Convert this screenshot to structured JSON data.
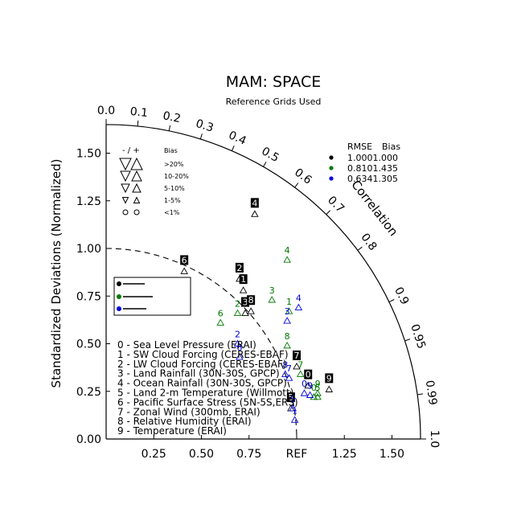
{
  "chart_data": {
    "type": "taylor",
    "title": "MAM: SPACE",
    "subtitle": "Reference Grids Used",
    "ylabel": "Standardized Deviations (Normalized)",
    "angular_label": "Correlation",
    "ylim": [
      0,
      1.65
    ],
    "xlim": [
      0,
      1.65
    ],
    "y_ticks": [
      "0.00",
      "0.25",
      "0.50",
      "0.75",
      "1.00",
      "1.25",
      "1.50"
    ],
    "y_tick_values": [
      0,
      0.25,
      0.5,
      0.75,
      1.0,
      1.25,
      1.5
    ],
    "x_ticks": [
      "0.25",
      "0.50",
      "0.75",
      "REF",
      "1.25",
      "1.50"
    ],
    "x_tick_values": [
      0.25,
      0.5,
      0.75,
      1.0,
      1.25,
      1.5
    ],
    "correlation_ticks": [
      "0.0",
      "0.1",
      "0.2",
      "0.3",
      "0.4",
      "0.5",
      "0.6",
      "0.7",
      "0.8",
      "0.9",
      "0.95",
      "0.99",
      "1.0"
    ],
    "correlation_values": [
      0.0,
      0.1,
      0.2,
      0.3,
      0.4,
      0.5,
      0.6,
      0.7,
      0.8,
      0.9,
      0.95,
      0.99,
      1.0
    ],
    "reference_arc": 1.0,
    "bias_legend": {
      "header_signs": "- / +",
      "header_bias": "Bias",
      "rows": [
        ">20%",
        "10-20%",
        "5-10%",
        "1-5%",
        "<1%"
      ]
    },
    "rmse_legend": {
      "header_rmse": "RMSE",
      "header_bias": "Bias",
      "rows": [
        {
          "color": "#000000",
          "rmse": "1.000",
          "bias": "1.000"
        },
        {
          "color": "#007a00",
          "rmse": "0.810",
          "bias": "1.435"
        },
        {
          "color": "#0000dd",
          "rmse": "0.634",
          "bias": "1.305"
        }
      ]
    },
    "series": [
      {
        "color": "#000000"
      },
      {
        "color": "#007a00"
      },
      {
        "color": "#0000dd"
      }
    ],
    "variables": [
      "0 - Sea Level Pressure (ERAI)",
      "1 - SW Cloud Forcing (CERES-EBAF)",
      "2 - LW Cloud Forcing (CERES-EBAF)",
      "3 - Land Rainfall (30N-30S, GPCP)",
      "4 - Ocean Rainfall (30N-30S, GPCP)",
      "5 - Land 2-m Temperature (Willmott)",
      "6 - Pacific Surface Stress (5N-5S,ERS)",
      "7 - Zonal Wind (300mb, ERAI)",
      "8 - Relative Humidity (ERAI)",
      "9 - Temperature (ERAI)"
    ],
    "points": [
      {
        "label": "0",
        "series": 0,
        "x": 1.06,
        "y": 0.28
      },
      {
        "label": "1",
        "series": 0,
        "x": 0.72,
        "y": 0.78
      },
      {
        "label": "2",
        "series": 0,
        "x": 0.7,
        "y": 0.84
      },
      {
        "label": "3",
        "series": 0,
        "x": 0.73,
        "y": 0.66
      },
      {
        "label": "4",
        "series": 0,
        "x": 0.78,
        "y": 1.18
      },
      {
        "label": "5",
        "series": 0,
        "x": 0.97,
        "y": 0.16
      },
      {
        "label": "6",
        "series": 0,
        "x": 0.41,
        "y": 0.88
      },
      {
        "label": "7",
        "series": 0,
        "x": 1.0,
        "y": 0.38
      },
      {
        "label": "8",
        "series": 0,
        "x": 0.76,
        "y": 0.67
      },
      {
        "label": "9",
        "series": 0,
        "x": 1.17,
        "y": 0.26
      },
      {
        "label": "0",
        "series": 1,
        "x": 1.09,
        "y": 0.22
      },
      {
        "label": "1",
        "series": 1,
        "x": 0.96,
        "y": 0.67
      },
      {
        "label": "2",
        "series": 1,
        "x": 0.69,
        "y": 0.66
      },
      {
        "label": "3",
        "series": 1,
        "x": 0.87,
        "y": 0.73
      },
      {
        "label": "4",
        "series": 1,
        "x": 0.95,
        "y": 0.94
      },
      {
        "label": "5",
        "series": 1,
        "x": 1.11,
        "y": 0.22
      },
      {
        "label": "6",
        "series": 1,
        "x": 0.6,
        "y": 0.61
      },
      {
        "label": "7",
        "series": 1,
        "x": 1.02,
        "y": 0.34
      },
      {
        "label": "8",
        "series": 1,
        "x": 0.95,
        "y": 0.49
      },
      {
        "label": "9",
        "series": 1,
        "x": 1.11,
        "y": 0.24
      },
      {
        "label": "0",
        "series": 2,
        "x": 1.04,
        "y": 0.24
      },
      {
        "label": "1",
        "series": 2,
        "x": 0.99,
        "y": 0.1
      },
      {
        "label": "2",
        "series": 2,
        "x": 0.69,
        "y": 0.5
      },
      {
        "label": "3",
        "series": 2,
        "x": 0.95,
        "y": 0.62
      },
      {
        "label": "4",
        "series": 2,
        "x": 1.01,
        "y": 0.69
      },
      {
        "label": "5",
        "series": 2,
        "x": 0.98,
        "y": 0.16
      },
      {
        "label": "6",
        "series": 2,
        "x": 0.7,
        "y": 0.43
      },
      {
        "label": "7",
        "series": 2,
        "x": 0.96,
        "y": 0.32
      },
      {
        "label": "8",
        "series": 2,
        "x": 0.94,
        "y": 0.34
      },
      {
        "label": "9",
        "series": 2,
        "x": 1.07,
        "y": 0.23
      }
    ]
  }
}
